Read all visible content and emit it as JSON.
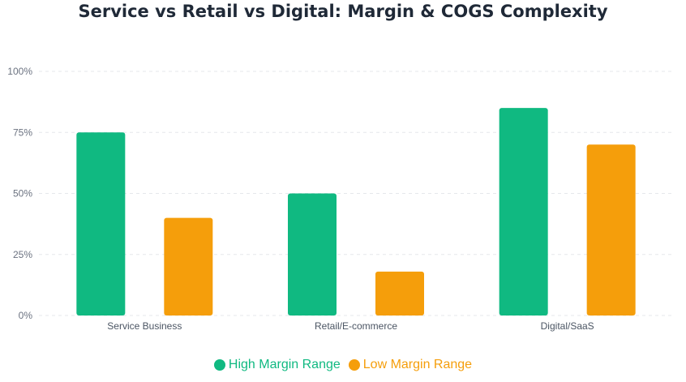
{
  "chart_data": {
    "type": "bar",
    "title": "Service vs Retail vs Digital: Margin & COGS Complexity",
    "categories": [
      "Service Business",
      "Retail/E-commerce",
      "Digital/SaaS"
    ],
    "series": [
      {
        "name": "High Margin Range",
        "color": "#10b981",
        "values": [
          75,
          50,
          85
        ]
      },
      {
        "name": "Low Margin Range",
        "color": "#f59e0b",
        "values": [
          40,
          18,
          70
        ]
      }
    ],
    "ylim": [
      0,
      100
    ],
    "yticks": [
      0,
      25,
      50,
      75,
      100
    ],
    "ytick_labels": [
      "0%",
      "25%",
      "50%",
      "75%",
      "100%"
    ],
    "grid": true,
    "legend_position": "bottom"
  }
}
